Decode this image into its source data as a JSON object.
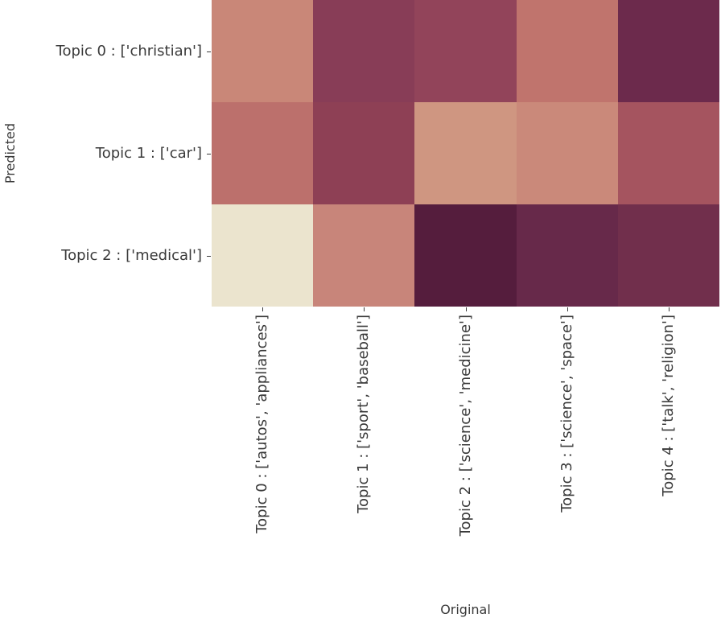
{
  "chart_data": {
    "type": "heatmap",
    "title": "",
    "xlabel": "Original",
    "ylabel": "Predicted",
    "x_categories": [
      "Topic 0 : ['autos', 'appliances']",
      "Topic 1 : ['sport', 'baseball']",
      "Topic 2 : ['science', 'medicine']",
      "Topic 3 : ['science', 'space']",
      "Topic 4 : ['talk', 'religion']"
    ],
    "y_categories": [
      "Topic 0 : ['christian']",
      "Topic 1 : ['car']",
      "Topic 2 : ['medical']"
    ],
    "cell_colors": [
      [
        "#c98778",
        "#883d57",
        "#92445a",
        "#c0746d",
        "#6c2a4c"
      ],
      [
        "#bc706c",
        "#8e4055",
        "#cf9681",
        "#ca897a",
        "#a5545f"
      ],
      [
        "#ebe4ce",
        "#c8857a",
        "#551d3d",
        "#67294a",
        "#712f4c"
      ]
    ],
    "colorbar": false,
    "cell_annotations": false,
    "legend": "none",
    "grid": false,
    "text_color": "#3a3a3a",
    "background_color": "#ffffff"
  }
}
